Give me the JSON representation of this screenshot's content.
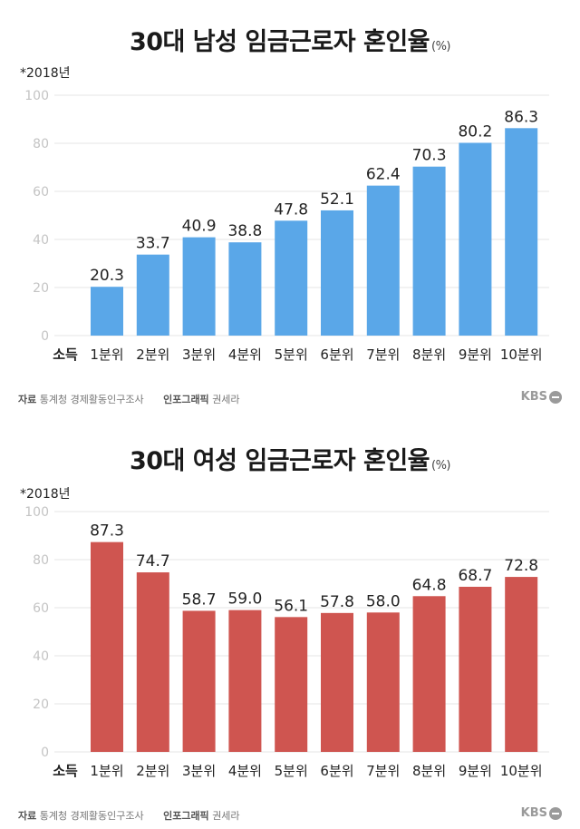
{
  "charts": [
    {
      "title": "30대 남성 임금근로자 혼인율",
      "unit": "(%)",
      "note": "*2018년",
      "source_label": "자료",
      "source": "통계청 경제활동인구조사",
      "credit_label": "인포그래픽",
      "credit": "권세라",
      "logo": "KBS",
      "x_first_label": "소득"
    },
    {
      "title": "30대 여성 임금근로자 혼인율",
      "unit": "(%)",
      "note": "*2018년",
      "source_label": "자료",
      "source": "통계청 경제활동인구조사",
      "credit_label": "인포그래픽",
      "credit": "권세라",
      "logo": "KBS",
      "x_first_label": "소득"
    }
  ],
  "chart_data": [
    {
      "type": "bar",
      "title": "30대 남성 임금근로자 혼인율",
      "categories": [
        "1분위",
        "2분위",
        "3분위",
        "4분위",
        "5분위",
        "6분위",
        "7분위",
        "8분위",
        "9분위",
        "10분위"
      ],
      "values": [
        20.3,
        33.7,
        40.9,
        38.8,
        47.8,
        52.1,
        62.4,
        70.3,
        80.2,
        86.3
      ],
      "ylim": [
        0,
        100
      ],
      "yticks": [
        0,
        20,
        40,
        60,
        80,
        100
      ],
      "color": "#5aa7e8",
      "grid": true
    },
    {
      "type": "bar",
      "title": "30대 여성 임금근로자 혼인율",
      "categories": [
        "1분위",
        "2분위",
        "3분위",
        "4분위",
        "5분위",
        "6분위",
        "7분위",
        "8분위",
        "9분위",
        "10분위"
      ],
      "values": [
        87.3,
        74.7,
        58.7,
        59.0,
        56.1,
        57.8,
        58.0,
        64.8,
        68.7,
        72.8
      ],
      "ylim": [
        0,
        100
      ],
      "yticks": [
        0,
        20,
        40,
        60,
        80,
        100
      ],
      "color": "#cf5550",
      "grid": true
    }
  ]
}
